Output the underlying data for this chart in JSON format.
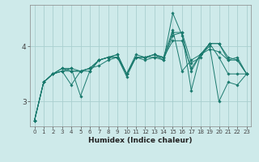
{
  "xlabel": "Humidex (Indice chaleur)",
  "bg_color": "#ceeaea",
  "line_color": "#1a7a6e",
  "grid_color": "#aacfcf",
  "xlim": [
    -0.5,
    23.5
  ],
  "ylim": [
    2.55,
    4.75
  ],
  "yticks": [
    3,
    4
  ],
  "xticks": [
    0,
    1,
    2,
    3,
    4,
    5,
    6,
    7,
    8,
    9,
    10,
    11,
    12,
    13,
    14,
    15,
    16,
    17,
    18,
    19,
    20,
    21,
    22,
    23
  ],
  "line1_y": [
    2.65,
    3.35,
    3.5,
    3.55,
    3.6,
    3.1,
    3.55,
    3.75,
    3.8,
    3.8,
    3.45,
    3.8,
    3.75,
    3.8,
    3.75,
    4.2,
    4.25,
    3.7,
    3.8,
    4.05,
    3.8,
    3.5,
    3.5,
    3.5
  ],
  "line2_y": [
    2.65,
    3.35,
    3.5,
    3.6,
    3.6,
    3.55,
    3.6,
    3.75,
    3.8,
    3.85,
    3.5,
    3.8,
    3.8,
    3.85,
    3.8,
    4.3,
    3.55,
    3.75,
    3.85,
    4.05,
    4.05,
    3.8,
    3.75,
    3.5
  ],
  "line3_y": [
    2.65,
    3.35,
    3.5,
    3.6,
    3.55,
    3.55,
    3.6,
    3.75,
    3.8,
    3.85,
    3.5,
    3.85,
    3.8,
    3.85,
    3.75,
    4.6,
    4.2,
    3.55,
    3.85,
    4.05,
    4.05,
    3.75,
    3.8,
    3.5
  ],
  "line4_y": [
    2.65,
    3.35,
    3.5,
    3.55,
    3.3,
    3.55,
    3.55,
    3.75,
    3.8,
    3.8,
    3.5,
    3.8,
    3.8,
    3.8,
    3.8,
    4.25,
    4.25,
    3.2,
    3.85,
    4.0,
    3.0,
    3.35,
    3.3,
    3.5
  ],
  "line5_y": [
    2.65,
    3.35,
    3.5,
    3.55,
    3.55,
    3.55,
    3.6,
    3.65,
    3.75,
    3.8,
    3.5,
    3.8,
    3.8,
    3.85,
    3.8,
    4.1,
    4.1,
    3.6,
    3.85,
    3.95,
    3.9,
    3.75,
    3.75,
    3.5
  ]
}
